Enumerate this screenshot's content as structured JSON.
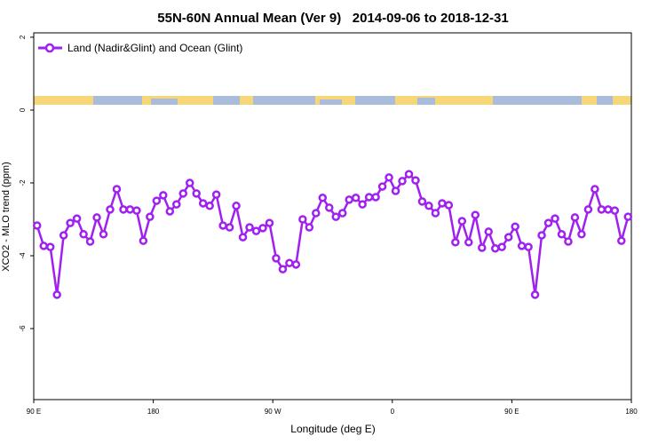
{
  "chart_data": {
    "type": "line",
    "title": "55N-60N Annual Mean (Ver 9)   2014-09-06 to 2018-12-31",
    "x_label": "Longitude (deg E)",
    "y_label": "XCO2 - MLO trend (ppm)",
    "xlim": [
      90,
      540
    ],
    "ylim": [
      -7.95,
      2.12
    ],
    "xticks": [
      {
        "value": 90,
        "label": "90 E"
      },
      {
        "value": 180,
        "label": "180"
      },
      {
        "value": 270,
        "label": "90 W"
      },
      {
        "value": 360,
        "label": "0"
      },
      {
        "value": 450,
        "label": "90 E"
      },
      {
        "value": 540,
        "label": "180"
      }
    ],
    "yticks": [
      2,
      0,
      -2,
      -4,
      -6
    ],
    "legend_position": "upper-left",
    "series": [
      {
        "name": "Land (Nadir&Glint) and Ocean (Glint)",
        "color": "#a020f0",
        "x": [
          92.5,
          97.5,
          102.5,
          107.5,
          112.5,
          117.5,
          122.5,
          127.5,
          132.5,
          137.5,
          142.5,
          147.5,
          152.5,
          157.5,
          162.5,
          167.5,
          172.5,
          177.5,
          182.5,
          187.5,
          192.5,
          197.5,
          202.5,
          207.5,
          212.5,
          217.5,
          222.5,
          227.5,
          232.5,
          237.5,
          242.5,
          247.5,
          252.5,
          257.5,
          262.5,
          267.5,
          272.5,
          277.5,
          282.5,
          287.5,
          292.5,
          297.5,
          302.5,
          307.5,
          312.5,
          317.5,
          322.5,
          327.5,
          332.5,
          337.5,
          342.5,
          347.5,
          352.5,
          357.5,
          362.5,
          367.5,
          372.5,
          377.5,
          382.5,
          387.5,
          392.5,
          397.5,
          402.5,
          407.5,
          412.5,
          417.5,
          422.5,
          427.5,
          432.5,
          437.5,
          442.5,
          447.5,
          452.5,
          457.5,
          462.5,
          467.5,
          472.5,
          477.5,
          482.5,
          487.5,
          492.5,
          497.5,
          502.5,
          507.5,
          512.5,
          517.5,
          522.5,
          527.5,
          532.5,
          537.5
        ],
        "values": [
          -3.17,
          -3.73,
          -3.76,
          -5.07,
          -3.44,
          -3.1,
          -2.98,
          -3.41,
          -3.61,
          -2.95,
          -3.41,
          -2.73,
          -2.17,
          -2.73,
          -2.73,
          -2.76,
          -3.59,
          -2.93,
          -2.49,
          -2.34,
          -2.78,
          -2.59,
          -2.29,
          -2.0,
          -2.29,
          -2.56,
          -2.63,
          -2.32,
          -3.17,
          -3.22,
          -2.63,
          -3.49,
          -3.22,
          -3.32,
          -3.24,
          -3.1,
          -4.07,
          -4.37,
          -4.2,
          -4.24,
          -3.0,
          -3.22,
          -2.83,
          -2.41,
          -2.68,
          -2.93,
          -2.83,
          -2.46,
          -2.41,
          -2.59,
          -2.39,
          -2.39,
          -2.1,
          -1.85,
          -2.22,
          -1.95,
          -1.76,
          -1.93,
          -2.51,
          -2.63,
          -2.83,
          -2.56,
          -2.61,
          -3.63,
          -3.05,
          -3.63,
          -2.88,
          -3.78,
          -3.34,
          -3.8,
          -3.76,
          -3.49,
          -3.2,
          -3.73,
          -3.76,
          -5.07,
          -3.44,
          -3.1,
          -2.98,
          -3.41,
          -3.61,
          -2.95,
          -3.41,
          -2.73,
          -2.17,
          -2.73,
          -2.73,
          -2.76,
          -3.59,
          -2.93
        ]
      }
    ]
  }
}
